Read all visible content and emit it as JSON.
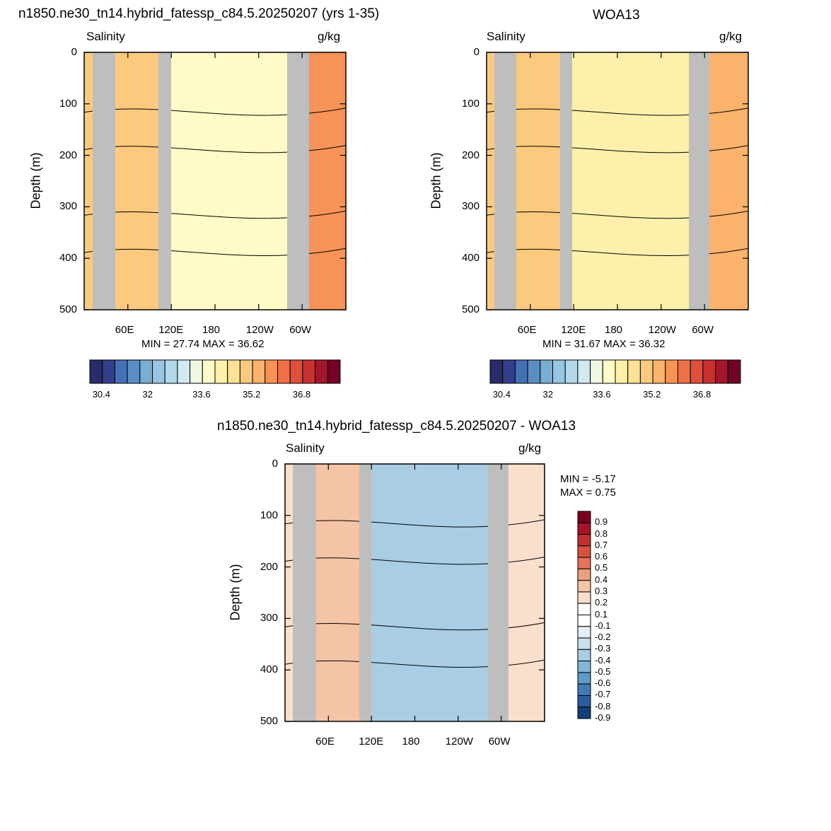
{
  "chart_data": [
    {
      "type": "heatmap",
      "title": "n1850.ne30_tn14.hybrid_fatessp_c84.5.20250207 (yrs 1-35)",
      "left_label": "Salinity",
      "right_label": "g/kg",
      "ylabel": "Depth (m)",
      "y_ticks": [
        "0",
        "100",
        "200",
        "300",
        "400",
        "500"
      ],
      "x_ticks": [
        "60E",
        "120E",
        "180",
        "120W",
        "60W"
      ],
      "stats": "MIN =  27.74  MAX =  36.62",
      "colorbar_ticks": [
        "30.4",
        "32",
        "33.6",
        "35.2",
        "36.8"
      ],
      "ylim": [
        500,
        0
      ]
    },
    {
      "type": "heatmap",
      "title": "WOA13",
      "left_label": "Salinity",
      "right_label": "g/kg",
      "ylabel": "Depth (m)",
      "y_ticks": [
        "0",
        "100",
        "200",
        "300",
        "400",
        "500"
      ],
      "x_ticks": [
        "60E",
        "120E",
        "180",
        "120W",
        "60W"
      ],
      "stats": "MIN =  31.67  MAX =  36.32",
      "colorbar_ticks": [
        "30.4",
        "32",
        "33.6",
        "35.2",
        "36.8"
      ],
      "ylim": [
        500,
        0
      ]
    },
    {
      "type": "heatmap",
      "title": "n1850.ne30_tn14.hybrid_fatessp_c84.5.20250207 - WOA13",
      "left_label": "Salinity",
      "right_label": "g/kg",
      "ylabel": "Depth (m)",
      "y_ticks": [
        "0",
        "100",
        "200",
        "300",
        "400",
        "500"
      ],
      "x_ticks": [
        "60E",
        "120E",
        "180",
        "120W",
        "60W"
      ],
      "stats_min": "MIN =  -5.17",
      "stats_max": "MAX =   0.75",
      "colorbar_ticks": [
        "0.9",
        "0.8",
        "0.7",
        "0.6",
        "0.5",
        "0.4",
        "0.3",
        "0.2",
        "0.1",
        "-0.1",
        "-0.2",
        "-0.3",
        "-0.4",
        "-0.5",
        "-0.6",
        "-0.7",
        "-0.8",
        "-0.9"
      ],
      "ylim": [
        500,
        0
      ]
    }
  ],
  "colors": {
    "full_scale": [
      "#2b2a6b",
      "#323f8c",
      "#4471b1",
      "#5a8dc2",
      "#79aed4",
      "#97c6e1",
      "#b2d8ea",
      "#d1e9f1",
      "#eef7e0",
      "#fefbc6",
      "#fdf0ab",
      "#fde196",
      "#fcca7f",
      "#fbb26b",
      "#f79356",
      "#ee7046",
      "#df4f3c",
      "#c9312f",
      "#a1172c",
      "#730326"
    ],
    "diff_scale": [
      "#7a0020",
      "#a51428",
      "#c23030",
      "#d6523f",
      "#e3735a",
      "#eda07e",
      "#f5c3a6",
      "#fbdfcd",
      "#ffffff",
      "#ffffff",
      "#e4eef6",
      "#c9dfee",
      "#a9cde3",
      "#84b6d8",
      "#5f9ac8",
      "#3f7cb7",
      "#275ea0",
      "#123f7c"
    ],
    "land": "#bebebe"
  }
}
